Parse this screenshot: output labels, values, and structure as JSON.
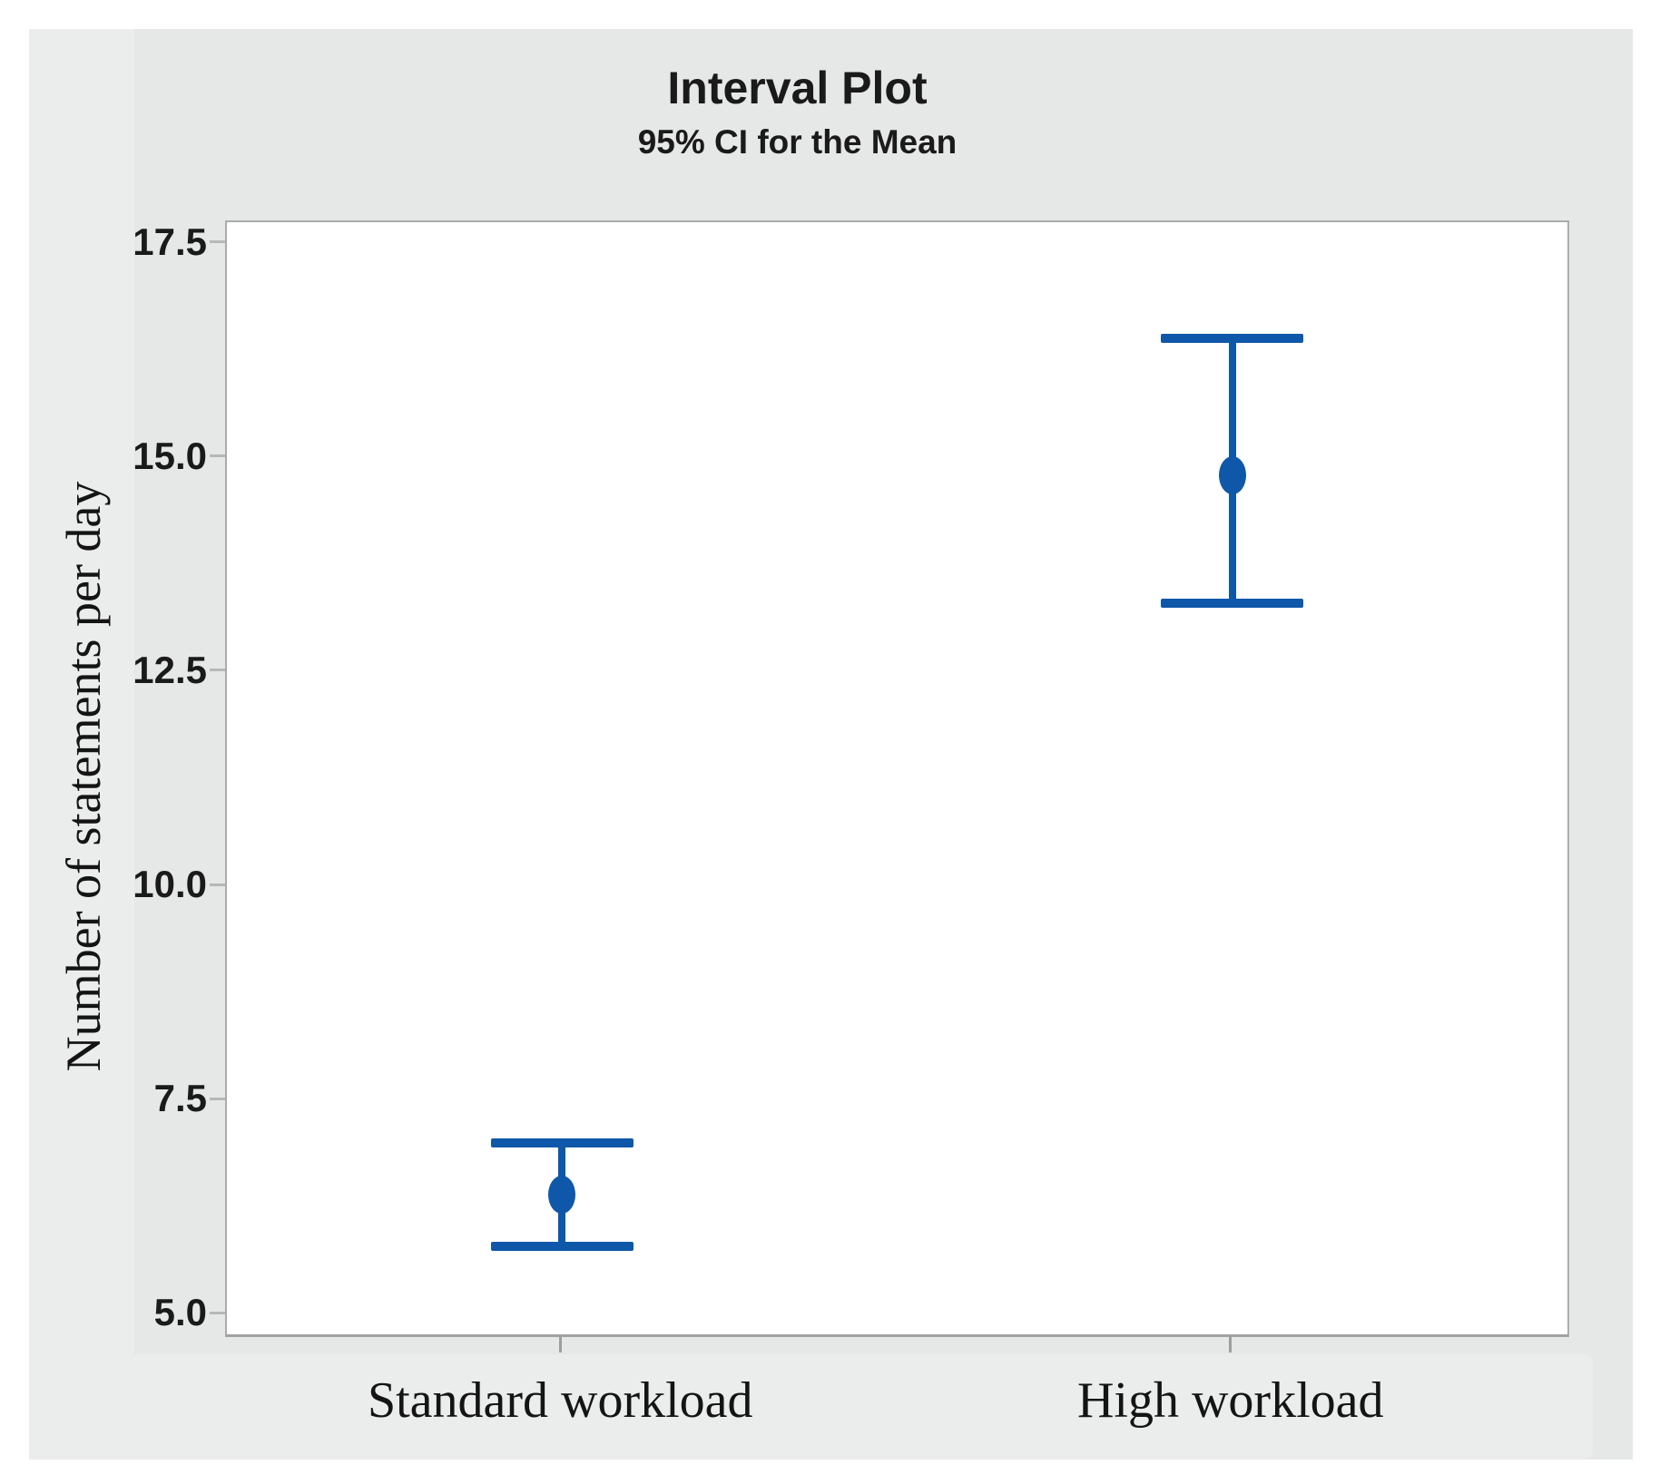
{
  "page": {
    "background_color": "#ffffff",
    "figure_background_color": "#e6e7e7",
    "label_strip_color": "#ebecec",
    "plot_background_color": "#ffffff",
    "plot_border_color": "#ababab",
    "tick_color": "#b7b7b7",
    "text_color": "#1a1a1a"
  },
  "chart_data": {
    "type": "interval",
    "title": "Interval Plot",
    "subtitle": "95% CI for the Mean",
    "xlabel": "",
    "ylabel": "Number of statements per day",
    "categories": [
      "Standard workload",
      "High workload"
    ],
    "series": [
      {
        "name": "95% CI for the Mean",
        "means": [
          6.4,
          14.8
        ],
        "ci_low": [
          5.8,
          13.3
        ],
        "ci_high": [
          7.0,
          16.4
        ]
      }
    ],
    "yticks": [
      5.0,
      7.5,
      10.0,
      12.5,
      15.0,
      17.5
    ],
    "ytick_decimals": 1,
    "ylim": [
      4.77,
      17.75
    ],
    "grid": false,
    "legend": false,
    "interval_color": "#0f57a8",
    "marker": "ellipse"
  }
}
